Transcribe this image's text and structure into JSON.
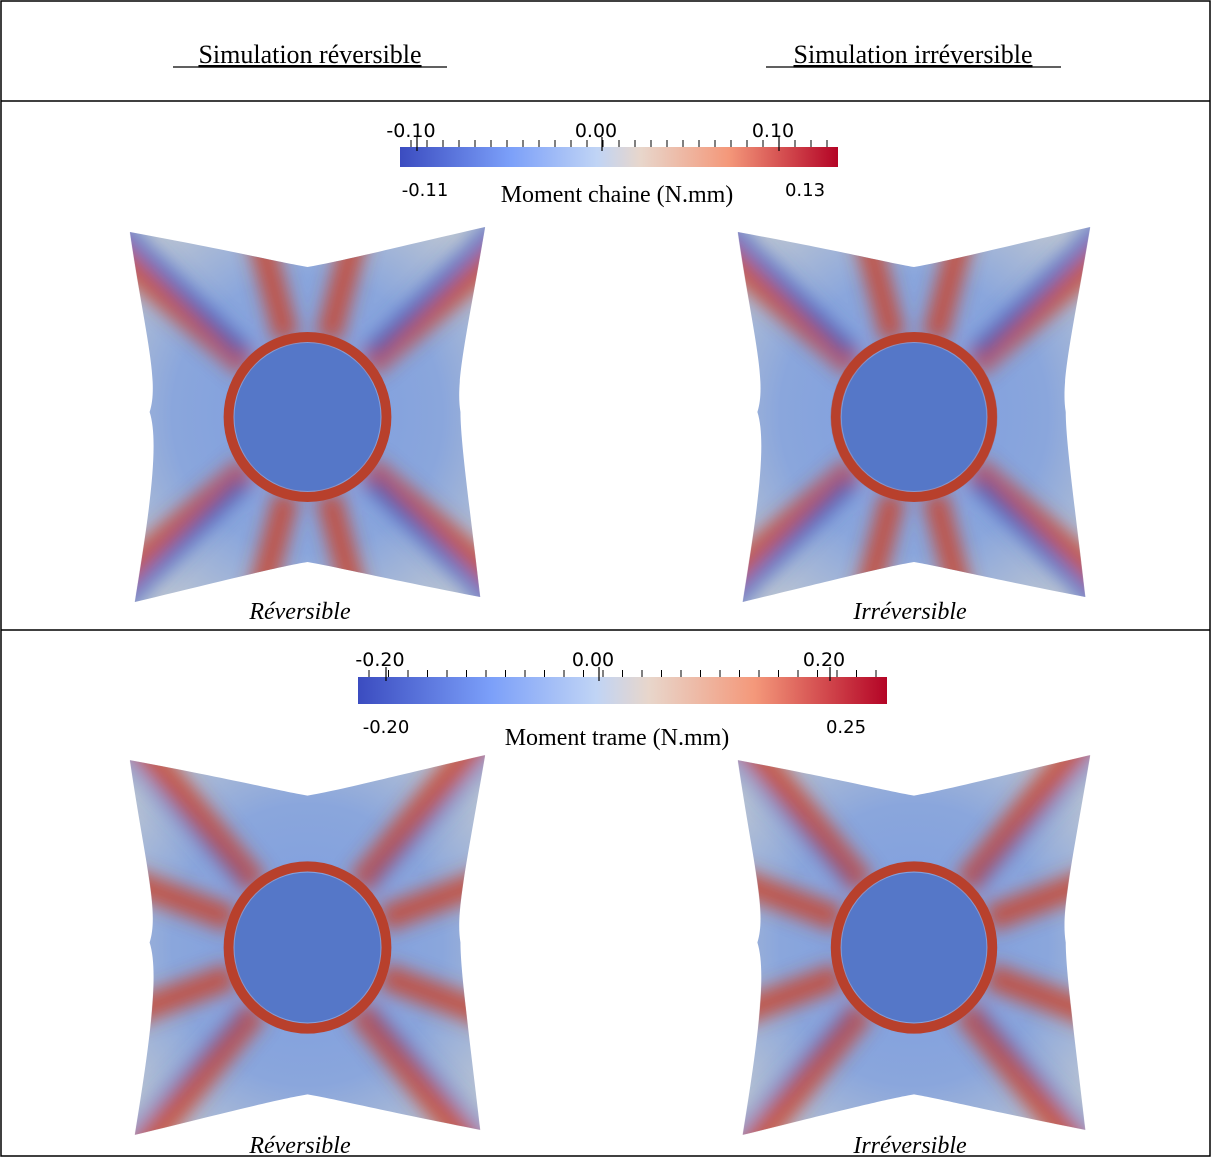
{
  "header": {
    "left": "Simulation réversible",
    "right": "Simulation irréversible"
  },
  "rows": [
    {
      "colorbar": {
        "ticks": [
          "-0.10",
          "0.00",
          "0.10"
        ],
        "min": "-0.11",
        "max": "0.13",
        "title": "Moment chaine (N.mm)"
      },
      "captions": [
        "Réversible",
        "Irréversible"
      ]
    },
    {
      "colorbar": {
        "ticks": [
          "-0.20",
          "0.00",
          "0.20"
        ],
        "min": "-0.20",
        "max": "0.25",
        "title": "Moment trame (N.mm)"
      },
      "captions": [
        "Réversible",
        "Irréversible"
      ]
    }
  ]
}
